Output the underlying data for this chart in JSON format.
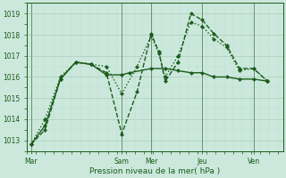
{
  "background_color": "#cce8dc",
  "grid_color_major": "#aaccbb",
  "grid_color_minor": "#bbddd0",
  "line_color": "#1a5c1a",
  "xlabel": "Pression niveau de la mer( hPa )",
  "ylim": [
    1012.5,
    1019.5
  ],
  "yticks": [
    1013,
    1014,
    1015,
    1016,
    1017,
    1018,
    1019
  ],
  "xlim": [
    0,
    10.0
  ],
  "xtick_labels": [
    "Mar",
    "Sam",
    "Mer",
    "Jeu",
    "Ven"
  ],
  "xtick_positions": [
    0.15,
    3.7,
    4.85,
    6.85,
    8.85
  ],
  "vline_positions": [
    0.15,
    3.7,
    4.85,
    6.85,
    8.85
  ],
  "series": [
    {
      "x": [
        0.15,
        0.7,
        1.3,
        1.9,
        2.5,
        3.1,
        3.7,
        4.0,
        4.85,
        5.4,
        5.9,
        6.4,
        6.85,
        7.3,
        7.8,
        8.3,
        8.85,
        9.4
      ],
      "y": [
        1012.8,
        1013.7,
        1015.9,
        1016.7,
        1016.6,
        1016.1,
        1016.1,
        1016.2,
        1016.4,
        1016.4,
        1016.3,
        1016.2,
        1016.2,
        1016.0,
        1016.0,
        1015.9,
        1015.9,
        1015.8
      ],
      "linestyle": "solid",
      "linewidth": 1.0,
      "marker": "D",
      "markersize": 2.2
    },
    {
      "x": [
        0.15,
        0.7,
        1.3,
        1.9,
        2.5,
        3.1,
        3.7,
        4.3,
        4.85,
        5.15,
        5.4,
        5.9,
        6.4,
        6.85,
        7.3,
        7.8,
        8.3,
        8.85,
        9.4
      ],
      "y": [
        1012.8,
        1013.5,
        1015.9,
        1016.7,
        1016.6,
        1016.2,
        1013.3,
        1015.3,
        1018.05,
        1017.2,
        1015.8,
        1016.7,
        1019.0,
        1018.7,
        1018.05,
        1017.5,
        1016.4,
        1016.4,
        1015.8
      ],
      "linestyle": "dashed",
      "linewidth": 1.0,
      "marker": "D",
      "markersize": 2.2
    },
    {
      "x": [
        0.15,
        0.7,
        1.3,
        1.9,
        2.5,
        3.1,
        3.7,
        4.3,
        4.85,
        5.15,
        5.4,
        5.9,
        6.4,
        6.85,
        7.3,
        7.8,
        8.3,
        8.85,
        9.4
      ],
      "y": [
        1012.8,
        1014.0,
        1016.0,
        1016.7,
        1016.6,
        1016.5,
        1015.2,
        1016.5,
        1017.95,
        1017.1,
        1016.0,
        1017.0,
        1018.6,
        1018.4,
        1017.8,
        1017.4,
        1016.3,
        1016.4,
        1015.8
      ],
      "linestyle": "dotted",
      "linewidth": 1.0,
      "marker": "D",
      "markersize": 2.2
    }
  ]
}
